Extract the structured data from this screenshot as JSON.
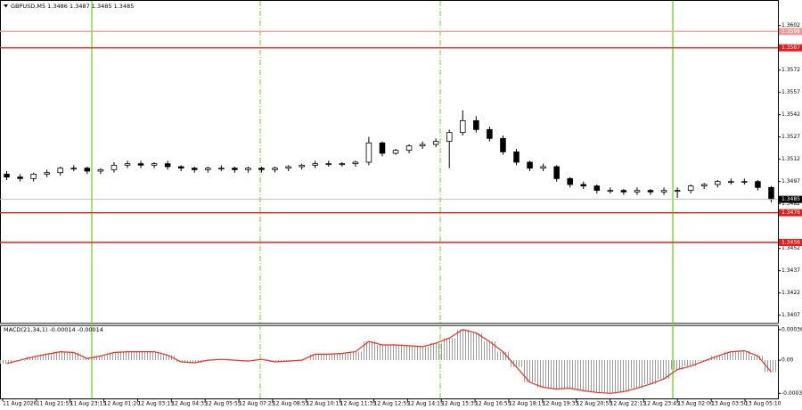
{
  "chart_data": {
    "type": "candlestick",
    "title": "GBPUSD,M5  1.3486 1.3487 1.3485 1.3485",
    "bid": 1.3485,
    "ylim": [
      1.3402,
      1.3618
    ],
    "yticks": [
      1.3602,
      1.3572,
      1.3557,
      1.3542,
      1.3527,
      1.3512,
      1.3497,
      1.3482,
      1.3452,
      1.3437,
      1.3422,
      1.3407
    ],
    "levels": [
      {
        "value": 1.3598,
        "color": "#f29a9a"
      },
      {
        "value": 1.3587,
        "color": "#e0201f"
      },
      {
        "value": 1.3476,
        "color": "#e0201f"
      },
      {
        "value": 1.3456,
        "color": "#e0201f"
      }
    ],
    "open": [
      1.3502,
      1.35,
      1.3499,
      1.3502,
      1.3503,
      1.3506,
      1.3506,
      1.3504,
      1.3505,
      1.3508,
      1.3509,
      1.3508,
      1.3509,
      1.3507,
      1.3506,
      1.3505,
      1.3506,
      1.3506,
      1.3505,
      1.3506,
      1.3505,
      1.3506,
      1.3507,
      1.3508,
      1.3509,
      1.3509,
      1.3509,
      1.351,
      1.3523,
      1.3516,
      1.3518,
      1.3521,
      1.3522,
      1.3524,
      1.353,
      1.3538,
      1.3532,
      1.3526,
      1.3517,
      1.351,
      1.3506,
      1.3507,
      1.3499,
      1.3495,
      1.3494,
      1.3491,
      1.3491,
      1.349,
      1.3491,
      1.349,
      1.3491,
      1.3491,
      1.3494,
      1.3495,
      1.3497,
      1.3497,
      1.3497,
      1.3493
    ],
    "high": [
      1.3504,
      1.3502,
      1.3503,
      1.3505,
      1.3507,
      1.3508,
      1.3507,
      1.3506,
      1.351,
      1.3511,
      1.3511,
      1.351,
      1.3511,
      1.3508,
      1.3507,
      1.3507,
      1.3508,
      1.3507,
      1.3507,
      1.3507,
      1.3507,
      1.3508,
      1.3509,
      1.3511,
      1.3511,
      1.351,
      1.3511,
      1.3527,
      1.3524,
      1.3519,
      1.3522,
      1.3524,
      1.3526,
      1.3532,
      1.3545,
      1.3541,
      1.3534,
      1.3528,
      1.3519,
      1.3511,
      1.3509,
      1.3508,
      1.35,
      1.3497,
      1.3495,
      1.3493,
      1.3492,
      1.3493,
      1.3492,
      1.3493,
      1.3493,
      1.3495,
      1.3496,
      1.3498,
      1.3499,
      1.3499,
      1.3498,
      1.3494
    ],
    "low": [
      1.3498,
      1.3497,
      1.3497,
      1.35,
      1.3501,
      1.3504,
      1.3502,
      1.3502,
      1.3503,
      1.3506,
      1.3506,
      1.3506,
      1.3505,
      1.3504,
      1.3503,
      1.3503,
      1.3504,
      1.3503,
      1.3503,
      1.3503,
      1.3503,
      1.3504,
      1.3505,
      1.3506,
      1.3507,
      1.3507,
      1.3507,
      1.3508,
      1.3514,
      1.3515,
      1.3516,
      1.3519,
      1.352,
      1.3506,
      1.3528,
      1.353,
      1.3524,
      1.3515,
      1.3508,
      1.3504,
      1.3504,
      1.3497,
      1.3493,
      1.3492,
      1.3489,
      1.3489,
      1.3488,
      1.3488,
      1.3488,
      1.3488,
      1.3486,
      1.3489,
      1.3492,
      1.3493,
      1.3495,
      1.3495,
      1.3491,
      1.3483
    ],
    "close": [
      1.35,
      1.3499,
      1.3502,
      1.3503,
      1.3506,
      1.3506,
      1.3504,
      1.3505,
      1.3508,
      1.3509,
      1.3508,
      1.3509,
      1.3507,
      1.3506,
      1.3505,
      1.3506,
      1.3506,
      1.3505,
      1.3506,
      1.3505,
      1.3506,
      1.3507,
      1.3508,
      1.3509,
      1.3509,
      1.3509,
      1.351,
      1.3523,
      1.3516,
      1.3518,
      1.3521,
      1.3522,
      1.3524,
      1.353,
      1.3538,
      1.3532,
      1.3526,
      1.3517,
      1.351,
      1.3506,
      1.3507,
      1.3499,
      1.3495,
      1.3494,
      1.3491,
      1.3491,
      1.349,
      1.3491,
      1.349,
      1.3491,
      1.3491,
      1.3494,
      1.3495,
      1.3497,
      1.3497,
      1.3497,
      1.3493,
      1.3485
    ],
    "time_labels": [
      "11 Aug 2026",
      "11 Aug 21:55",
      "11 Aug 23:15",
      "12 Aug 01:20",
      "12 Aug 03:15",
      "12 Aug 04:35",
      "12 Aug 05:55",
      "12 Aug 07:25",
      "12 Aug 08:55",
      "12 Aug 10:15",
      "12 Aug 11:35",
      "12 Aug 12:55",
      "12 Aug 14:15",
      "12 Aug 15:35",
      "12 Aug 16:55",
      "12 Aug 18:15",
      "12 Aug 19:35",
      "12 Aug 20:55",
      "12 Aug 22:15",
      "12 Aug 23:45",
      "13 Aug 02:00",
      "13 Aug 03:50",
      "13 Aug 05:10"
    ],
    "macd": {
      "label": "MACD(21,34,1) -0.00014 -0.00014",
      "color": "#e8302a",
      "ylim": [
        -0.00045,
        0.0004
      ],
      "yticks": [
        0.00036,
        {
          "value": 0,
          "label": "0.00"
        },
        -0.00039
      ],
      "values": [
        -4e-05,
        0.0,
        4e-05,
        7e-05,
        0.0001,
        9e-05,
        2e-05,
        5e-05,
        9e-05,
        0.0001,
        0.0001,
        0.0001,
        6e-05,
        -2e-05,
        -3e-05,
        0.0,
        1e-05,
        0.0,
        -1e-05,
        1e-05,
        -2e-05,
        -1e-05,
        0.0,
        7e-05,
        7e-05,
        8e-05,
        0.0001,
        0.00022,
        0.00018,
        0.00018,
        0.00017,
        0.00016,
        0.0002,
        0.00026,
        0.00036,
        0.00032,
        0.00022,
        0.0001,
        -8e-05,
        -0.00026,
        -0.00032,
        -0.00034,
        -0.00033,
        -0.00036,
        -0.00038,
        -0.00039,
        -0.00037,
        -0.00033,
        -0.00028,
        -0.00022,
        -0.00011,
        -7e-05,
        -1e-05,
        5e-05,
        0.0001,
        0.00011,
        5e-05,
        -0.00014
      ]
    }
  }
}
